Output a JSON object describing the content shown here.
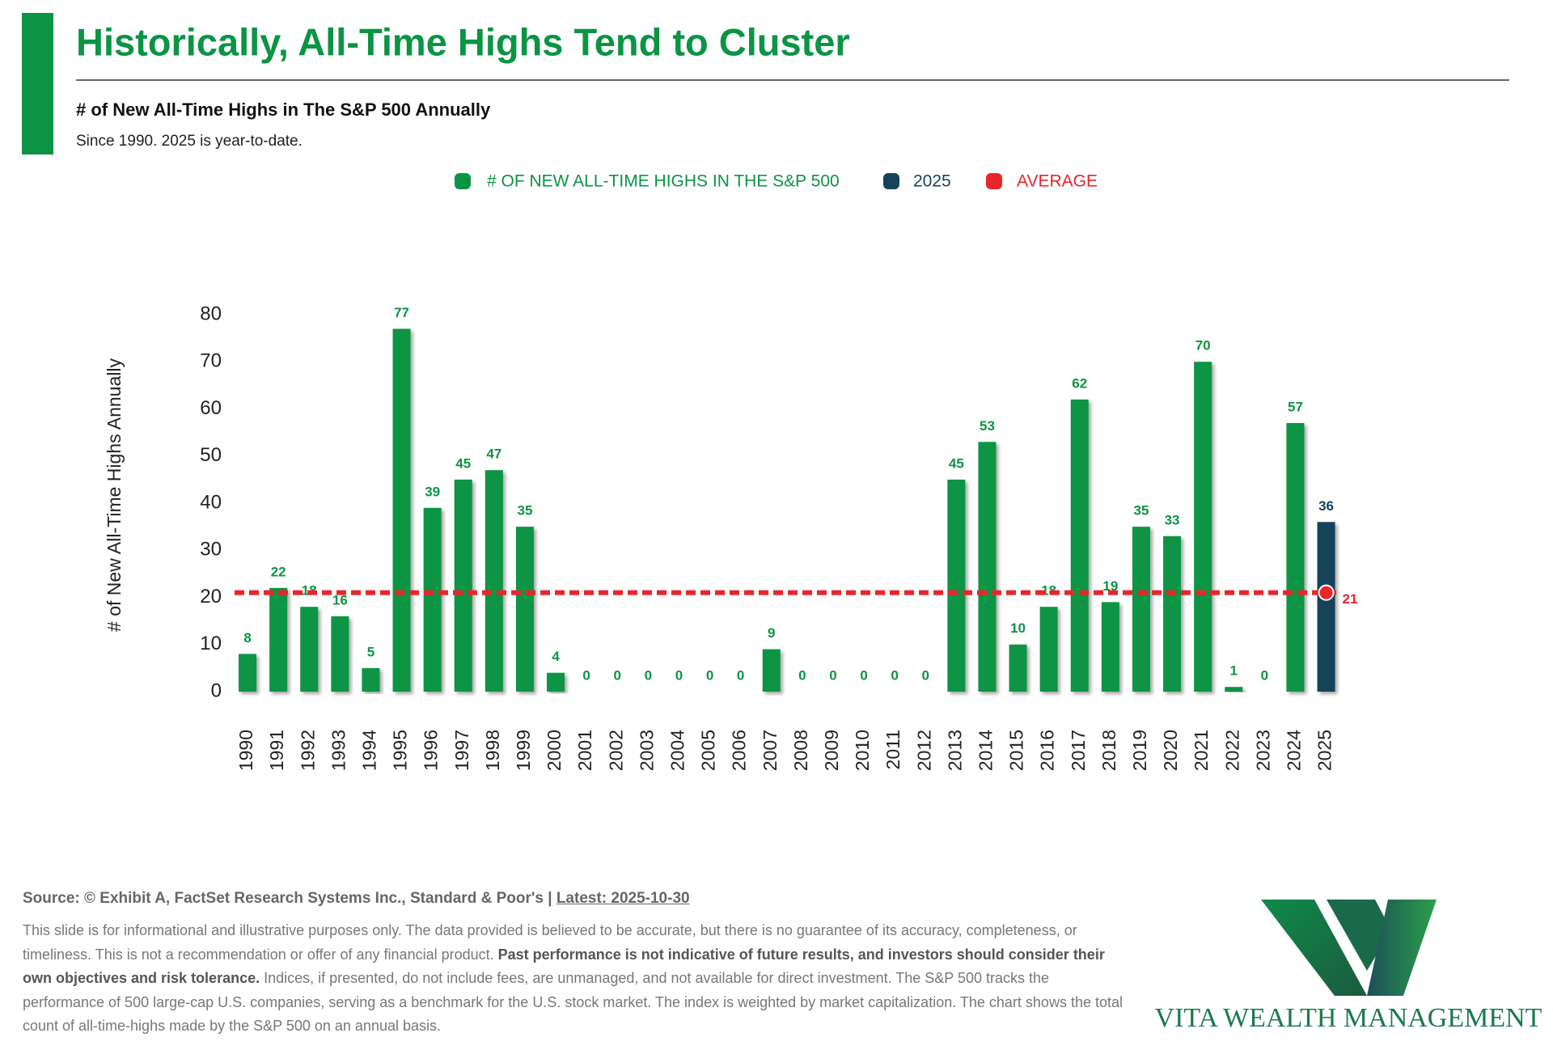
{
  "chart_data": {
    "type": "bar",
    "title": "Historically, All-Time Highs Tend to Cluster",
    "subtitle": "# of New All-Time Highs in The S&P 500 Annually",
    "note": "Since 1990. 2025 is year-to-date.",
    "y_label": "# of New All-Time Highs Annually",
    "categories": [
      "1990",
      "1991",
      "1992",
      "1993",
      "1994",
      "1995",
      "1996",
      "1997",
      "1998",
      "1999",
      "2000",
      "2001",
      "2002",
      "2003",
      "2004",
      "2005",
      "2006",
      "2007",
      "2008",
      "2009",
      "2010",
      "2011",
      "2012",
      "2013",
      "2014",
      "2015",
      "2016",
      "2017",
      "2018",
      "2019",
      "2020",
      "2021",
      "2022",
      "2023",
      "2024",
      "2025"
    ],
    "series": [
      {
        "name": "# OF NEW ALL-TIME HIGHS IN THE S&P 500",
        "color": "#0b9444",
        "values": [
          8,
          22,
          18,
          16,
          5,
          77,
          39,
          45,
          47,
          35,
          4,
          0,
          0,
          0,
          0,
          0,
          0,
          9,
          0,
          0,
          0,
          0,
          0,
          45,
          53,
          10,
          18,
          62,
          19,
          35,
          33,
          70,
          1,
          0,
          57,
          null
        ]
      },
      {
        "name": "2025",
        "color": "#16435a",
        "values": [
          null,
          null,
          null,
          null,
          null,
          null,
          null,
          null,
          null,
          null,
          null,
          null,
          null,
          null,
          null,
          null,
          null,
          null,
          null,
          null,
          null,
          null,
          null,
          null,
          null,
          null,
          null,
          null,
          null,
          null,
          null,
          null,
          null,
          null,
          null,
          36
        ]
      }
    ],
    "average": {
      "name": "AVERAGE",
      "value": 21,
      "color": "#e8262a"
    },
    "ylim": [
      0,
      80
    ],
    "yticks": [
      0,
      10,
      20,
      30,
      40,
      50,
      60,
      70,
      80
    ],
    "grid": false
  },
  "footer": {
    "source": "Source: © Exhibit A, FactSet Research Systems Inc., Standard & Poor's |",
    "latest": "Latest: 2025-10-30",
    "disclaimer_1": "This slide is for informational and illustrative purposes only. The data provided is believed to be accurate, but there is no guarantee of its accuracy, completeness, or timeliness. This is not a recommendation or offer of any financial product.",
    "disclaimer_bold": "Past performance is not indicative of future results, and investors should consider their own objectives and risk tolerance.",
    "disclaimer_2": "Indices, if presented, do not include fees, are unmanaged, and not available for direct investment. The S&P 500 tracks the performance of 500 large-cap U.S. companies, serving as a benchmark for the U.S. stock market. The index is weighted by market capitalization. The chart shows the total count of all-time-highs made by the S&P 500 on an annual basis."
  },
  "logo": {
    "text": "VITA WEALTH MANAGEMENT"
  }
}
